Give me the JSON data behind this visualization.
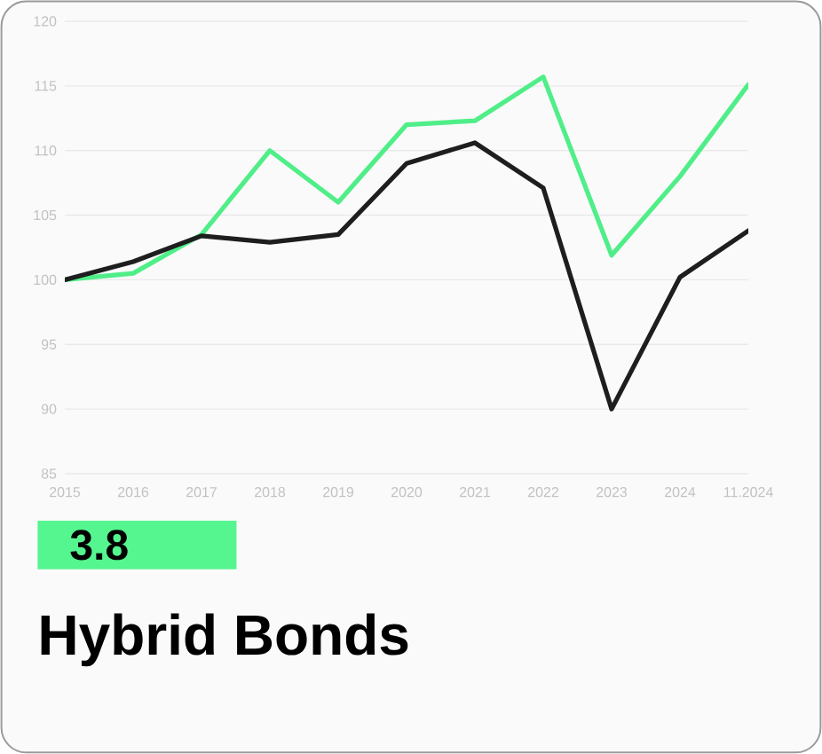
{
  "chart_data": {
    "type": "line",
    "title": "Hybrid Bonds",
    "annotations": [
      "3.8"
    ],
    "categories": [
      "2015",
      "2016",
      "2017",
      "2018",
      "2019",
      "2020",
      "2021",
      "2022",
      "2023",
      "2024",
      "11.2024"
    ],
    "series": [
      {
        "color": "#50ee88",
        "values": [
          100,
          100.5,
          103.5,
          110,
          106,
          112,
          112.3,
          115.7,
          101.9,
          108,
          115.1
        ]
      },
      {
        "color": "#1e1e1e",
        "values": [
          100,
          101.4,
          103.4,
          102.9,
          103.5,
          109,
          110.6,
          107.1,
          90,
          100.2,
          103.8
        ]
      }
    ],
    "ylim": [
      85,
      120
    ],
    "yticks": [
      85,
      90,
      95,
      100,
      105,
      110,
      115,
      120
    ],
    "grid": "y",
    "marker": "none",
    "line_style": "solid"
  }
}
